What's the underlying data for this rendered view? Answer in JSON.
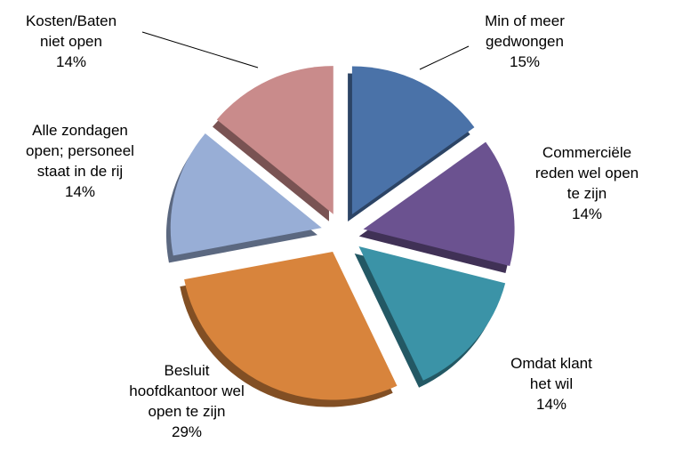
{
  "chart_data": {
    "type": "pie",
    "categories": [
      "Min of meer gedwongen",
      "Commerciële reden wel open te zijn",
      "Omdat klant het wil",
      "Besluit hoofdkantoor wel open te zijn",
      "Alle zondagen open; personeel staat in de rij",
      "Kosten/Baten niet open"
    ],
    "values": [
      15,
      14,
      14,
      29,
      14,
      14
    ],
    "value_labels": [
      "15%",
      "14%",
      "14%",
      "29%",
      "14%",
      "14%"
    ],
    "colors": [
      "#4a72a8",
      "#6b5290",
      "#3b93a7",
      "#d8843c",
      "#98aed6",
      "#c98b8b"
    ]
  }
}
